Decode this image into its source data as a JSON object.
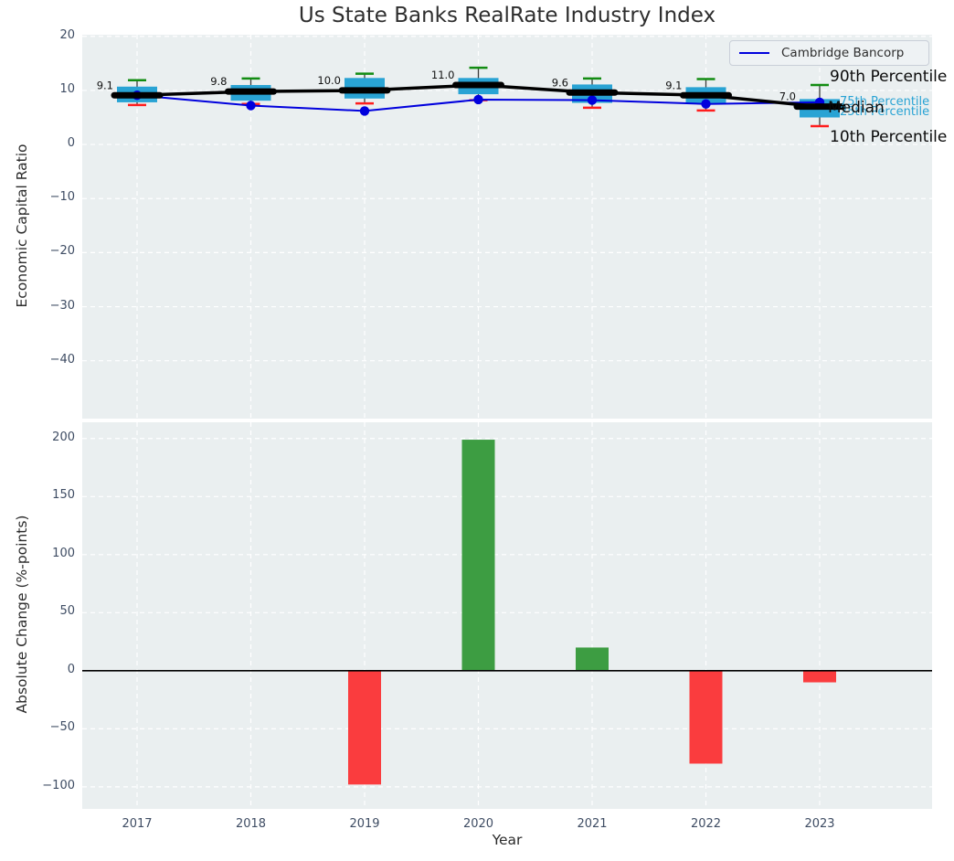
{
  "title": "Us State Banks RealRate Industry Index",
  "legend": {
    "label": "Cambridge Bancorp"
  },
  "annotations": {
    "p90": "90th Percentile",
    "p75": "75th Percentile",
    "median": "Median",
    "p25": "25th Percentile",
    "p10": "10th Percentile"
  },
  "colors": {
    "plot_bg": "#eaeff0",
    "grid": "#ffffff",
    "box_fill": "#29a3d4",
    "whisker": "#3c3c3c",
    "cap_high": "#128c12",
    "cap_low": "#ff1e1e",
    "median_line": "#000000",
    "company_line": "#0000dd",
    "bar_positive": "#3d9d42",
    "bar_negative": "#fa3c3e",
    "tick_text": "#3e4c63",
    "value_label_text": "#111111"
  },
  "chart_data": [
    {
      "type": "boxplot+line",
      "title": "Us State Banks RealRate Industry Index",
      "ylabel": "Economic Capital Ratio",
      "ylim": [
        -50.7,
        20.3
      ],
      "yticks": [
        20,
        10,
        0,
        -10,
        -20,
        -30,
        -40
      ],
      "ytick_labels": [
        "20",
        "10",
        "0",
        "−10",
        "−20",
        "−30",
        "−40"
      ],
      "categories": [
        "2017",
        "2018",
        "2019",
        "2020",
        "2021",
        "2022",
        "2023"
      ],
      "grid": true,
      "legend_position": "upper right",
      "boxes": [
        {
          "year": "2017",
          "p90": 11.9,
          "p75": 10.7,
          "median": 9.1,
          "p25": 7.8,
          "p10": 7.3,
          "label": "9.1"
        },
        {
          "year": "2018",
          "p90": 12.2,
          "p75": 11.0,
          "median": 9.8,
          "p25": 8.1,
          "p10": 7.5,
          "label": "9.8"
        },
        {
          "year": "2019",
          "p90": 13.1,
          "p75": 12.3,
          "median": 10.0,
          "p25": 8.5,
          "p10": 7.6,
          "label": "10.0"
        },
        {
          "year": "2020",
          "p90": 14.2,
          "p75": 12.3,
          "median": 11.0,
          "p25": 9.3,
          "p10": 8.2,
          "label": "11.0"
        },
        {
          "year": "2021",
          "p90": 12.2,
          "p75": 11.1,
          "median": 9.6,
          "p25": 7.7,
          "p10": 6.8,
          "label": "9.6"
        },
        {
          "year": "2022",
          "p90": 12.1,
          "p75": 10.6,
          "median": 9.1,
          "p25": 7.5,
          "p10": 6.3,
          "label": "9.1"
        },
        {
          "year": "2023",
          "p90": 11.0,
          "p75": 8.4,
          "median": 7.0,
          "p25": 5.0,
          "p10": 3.4,
          "label": "7.0"
        }
      ],
      "series": [
        {
          "name": "Cambridge Bancorp",
          "values": [
            9.1,
            7.2,
            6.2,
            8.3,
            8.2,
            7.5,
            7.8
          ]
        }
      ]
    },
    {
      "type": "bar",
      "ylabel": "Absolute Change (%-points)",
      "xlabel": "Year",
      "ylim": [
        -119,
        214
      ],
      "yticks": [
        200,
        150,
        100,
        50,
        0,
        -50,
        -100
      ],
      "ytick_labels": [
        "200",
        "150",
        "100",
        "50",
        "0",
        "−50",
        "−100"
      ],
      "categories": [
        "2017",
        "2018",
        "2019",
        "2020",
        "2021",
        "2022",
        "2023"
      ],
      "values": [
        null,
        null,
        -98,
        199,
        20,
        -80,
        -10
      ],
      "grid": true
    }
  ]
}
